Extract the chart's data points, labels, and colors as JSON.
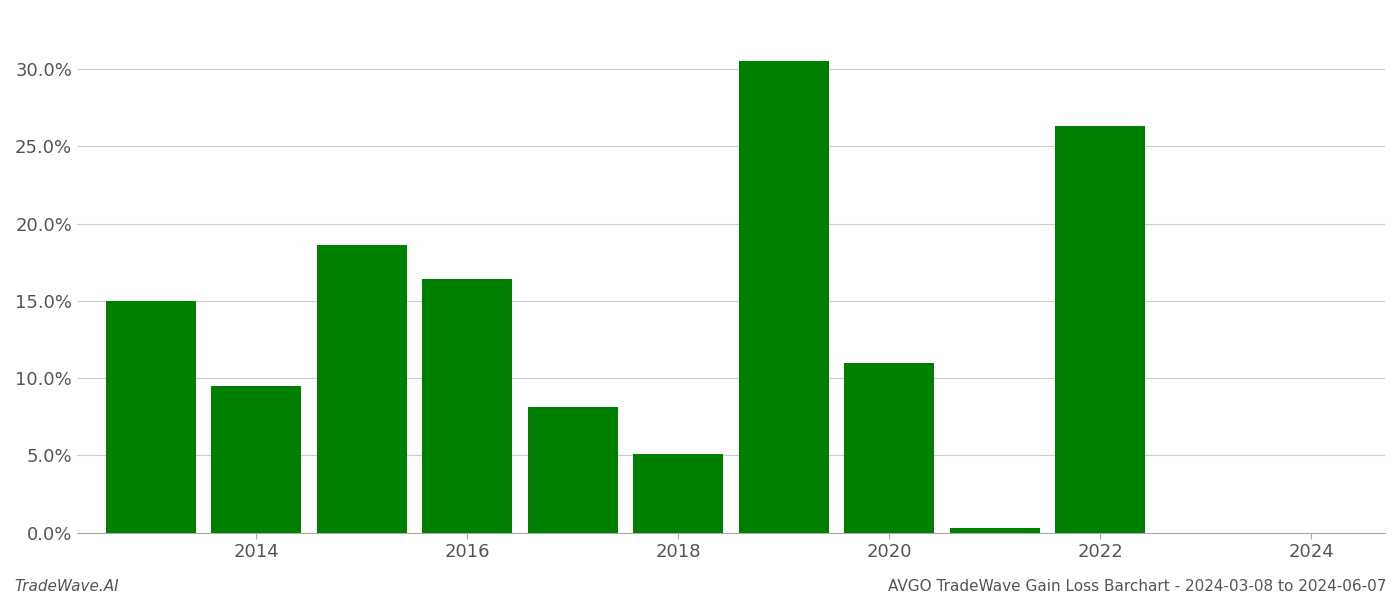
{
  "years": [
    2013,
    2014,
    2015,
    2016,
    2017,
    2018,
    2019,
    2020,
    2021,
    2022,
    2023
  ],
  "values": [
    0.15,
    0.095,
    0.186,
    0.164,
    0.081,
    0.051,
    0.305,
    0.11,
    0.003,
    0.263,
    0.0
  ],
  "bar_color": "#008000",
  "background_color": "#ffffff",
  "grid_color": "#cccccc",
  "xlim": [
    2012.3,
    2024.7
  ],
  "ylim": [
    0.0,
    0.335
  ],
  "yticks": [
    0.0,
    0.05,
    0.1,
    0.15,
    0.2,
    0.25,
    0.3
  ],
  "xticks": [
    2014,
    2016,
    2018,
    2020,
    2022,
    2024
  ],
  "footer_left": "TradeWave.AI",
  "footer_right": "AVGO TradeWave Gain Loss Barchart - 2024-03-08 to 2024-06-07",
  "bar_width": 0.85,
  "tick_fontsize": 13,
  "footer_fontsize": 11
}
